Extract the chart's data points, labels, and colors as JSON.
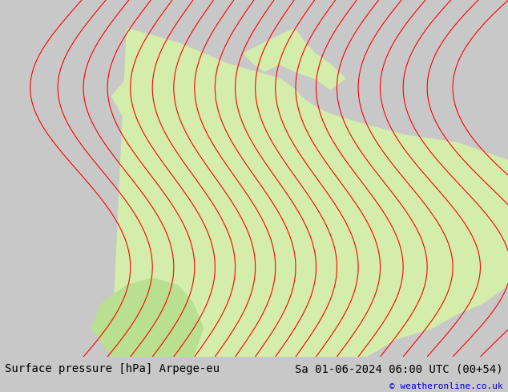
{
  "title_left": "Surface pressure [hPa] Arpege-eu",
  "title_right": "Sa 01-06-2024 06:00 UTC (00+54)",
  "copyright": "© weatheronline.co.uk",
  "bg_color": "#c8c8c8",
  "land_color_light": "#d4edaa",
  "land_color_green": "#b8e090",
  "bottom_bar_color": "#e8e8e8",
  "font_color_title": "#000000",
  "font_color_copyright": "#0000cc",
  "figsize": [
    6.34,
    4.9
  ],
  "dpi": 100
}
